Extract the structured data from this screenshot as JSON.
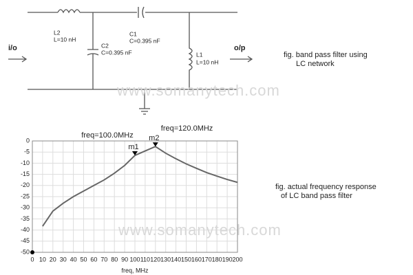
{
  "circuit": {
    "input_label": "i/o",
    "output_label": "o/p",
    "components": [
      {
        "name": "L2",
        "value": "L=10 nH"
      },
      {
        "name": "C2",
        "value": "C=0.395 nF"
      },
      {
        "name": "C1",
        "value": "C=0.395 nF"
      },
      {
        "name": "L1",
        "value": "L=10 nH"
      }
    ],
    "caption": [
      "fig. band pass filter using",
      "LC network"
    ]
  },
  "watermark": "www.somanytech.com",
  "chart_data": {
    "type": "line",
    "x_label": "freq, MHz",
    "caption": [
      "fig. actual frequency response",
      "of LC band pass filter"
    ],
    "x": [
      10,
      20,
      30,
      40,
      50,
      60,
      70,
      80,
      90,
      100,
      110,
      120,
      130,
      140,
      150,
      160,
      170,
      180,
      190,
      200
    ],
    "series": [
      {
        "color": "#666666",
        "values": [
          -38.3,
          -31.5,
          -28,
          -25,
          -22.5,
          -20,
          -17.5,
          -14.5,
          -11,
          -6.5,
          -4.5,
          -2.5,
          -5.5,
          -8,
          -10.3,
          -12.3,
          -14.2,
          -15.8,
          -17.3,
          -18.6
        ]
      }
    ],
    "markers": [
      {
        "name": "m1",
        "label": "freq=100.0MHz",
        "x": 100
      },
      {
        "name": "m2",
        "label": "freq=120.0MHz",
        "x": 120
      }
    ],
    "xlim": [
      0,
      200
    ],
    "xticks": [
      0,
      10,
      20,
      30,
      40,
      50,
      60,
      70,
      80,
      90,
      100,
      110,
      120,
      130,
      140,
      150,
      160,
      170,
      180,
      190,
      200
    ],
    "ylim": [
      -50,
      0
    ],
    "yticks": [
      -50,
      -45,
      -40,
      -35,
      -30,
      -25,
      -20,
      -15,
      -10,
      -5,
      0
    ],
    "grid": true
  }
}
